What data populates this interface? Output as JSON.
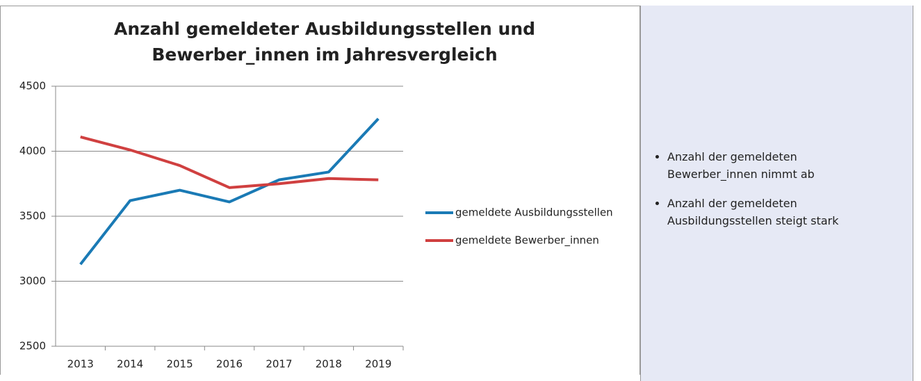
{
  "chart_data": {
    "type": "line",
    "title": [
      "Anzahl gemeldeter Ausbildungsstellen und",
      "Bewerber_innen im Jahresvergleich"
    ],
    "categories": [
      "2013",
      "2014",
      "2015",
      "2016",
      "2017",
      "2018",
      "2019"
    ],
    "series": [
      {
        "name": "gemeldete Ausbildungsstellen",
        "color": "#1a7ab5",
        "values": [
          3130,
          3620,
          3700,
          3610,
          3780,
          3840,
          4250
        ]
      },
      {
        "name": "gemeldete Bewerber_innen",
        "color": "#d04040",
        "values": [
          4110,
          4010,
          3890,
          3720,
          3750,
          3790,
          3780
        ]
      }
    ],
    "ylim": [
      2500,
      4500
    ],
    "yticks": [
      2500,
      3000,
      3500,
      4000,
      4500
    ],
    "grid": true,
    "legend": "right"
  },
  "notes": [
    "Anzahl der gemeldeten Bewerber_innen nimmt ab",
    "Anzahl der gemeldeten Ausbildungsstellen steigt stark"
  ]
}
